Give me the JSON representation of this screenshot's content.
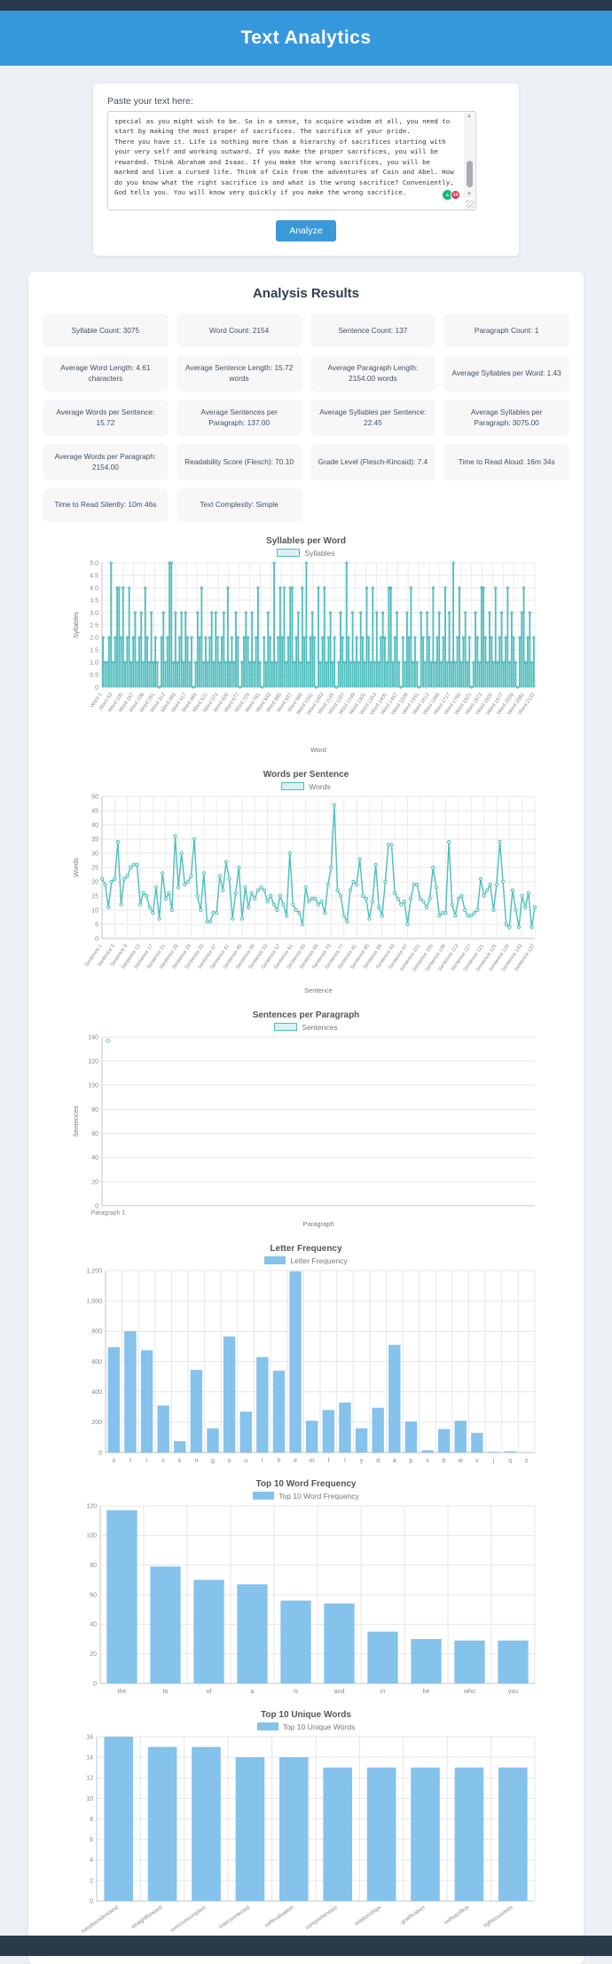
{
  "header": {
    "title": "Text Analytics"
  },
  "input_section": {
    "label": "Paste your text here:",
    "textarea_value": "special as you might wish to be. So in a sense, to acquire wisdom at all, you need to start by making the most proper of sacrifices. The sacrifice of your pride.\nThere you have it. Life is nothing more than a hierarchy of sacrifices starting with your very self and working outward. If you make the proper sacrifices, you will be rewarded. Think Abraham and Isaac. If you make the wrong sacrifices, you will be marked and live a cursed life. Think of Cain from the adventures of Cain and Abel. How do you know what the right sacrifice is and what is the wrong sacrifice? Conveniently, God tells you. You will know very quickly if you make the wrong sacrifice.",
    "analyze_button": "Analyze",
    "checker_error_count": "24"
  },
  "results": {
    "title": "Analysis Results",
    "stats": [
      "Syllable Count: 3075",
      "Word Count: 2154",
      "Sentence Count: 137",
      "Paragraph Count: 1",
      "Average Word Length: 4.61 characters",
      "Average Sentence Length: 15.72 words",
      "Average Paragraph Length: 2154.00 words",
      "Average Syllables per Word: 1.43",
      "Average Words per Sentence: 15.72",
      "Average Sentences per Paragraph: 137.00",
      "Average Syllables per Sentence: 22.45",
      "Average Syllables per Paragraph: 3075.00",
      "Average Words per Paragraph: 2154.00",
      "Readability Score (Flesch): 70.10",
      "Grade Level (Flesch-Kincaid): 7.4",
      "Time to Read Aloud: 16m 34s",
      "Time to Read Silently: 10m 46s",
      "Text Complexity: Simple"
    ]
  },
  "colors": {
    "accent_blue": "#3598dc",
    "teal_series": "#4dbdbd",
    "blue_series": "#85c2ec",
    "dark_bar": "#2a3a4a"
  },
  "chart_data": [
    {
      "id": "syllables-per-word",
      "type": "bar",
      "title": "Syllables per Word",
      "legend": "Syllables",
      "color": "#4dbdbd",
      "ylabel": "Syllables",
      "xlabel": "Word",
      "ylim": [
        0,
        5
      ],
      "ytick_values": [
        0,
        0.5,
        1,
        1.5,
        2,
        2.5,
        3,
        3.5,
        4,
        4.5,
        5
      ],
      "ytick_labels": [
        "0",
        "0.5",
        "1.0",
        "1.5",
        "2.0",
        "2.5",
        "3.0",
        "3.5",
        "4.0",
        "4.5",
        "5.0"
      ],
      "x_tick_labels": [
        "Word 1",
        "Word 53",
        "Word 105",
        "Word 157",
        "Word 209",
        "Word 261",
        "Word 313",
        "Word 365",
        "Word 417",
        "Word 469",
        "Word 521",
        "Word 573",
        "Word 625",
        "Word 677",
        "Word 729",
        "Word 781",
        "Word 833",
        "Word 885",
        "Word 937",
        "Word 989",
        "Word 1041",
        "Word 1093",
        "Word 1145",
        "Word 1197",
        "Word 1249",
        "Word 1301",
        "Word 1353",
        "Word 1405",
        "Word 1457",
        "Word 1509",
        "Word 1561",
        "Word 1613",
        "Word 1665",
        "Word 1717",
        "Word 1769",
        "Word 1821",
        "Word 1873",
        "Word 1925",
        "Word 1977",
        "Word 2029",
        "Word 2081",
        "Word 2133"
      ],
      "values": [
        2,
        1,
        1,
        2,
        5,
        1,
        2,
        4,
        4,
        2,
        4,
        1,
        2,
        4,
        1,
        2,
        3,
        1,
        2,
        3,
        1,
        4,
        2,
        1,
        3,
        1,
        2,
        1,
        0,
        2,
        3,
        1,
        2,
        5,
        5,
        1,
        3,
        1,
        2,
        3,
        1,
        3,
        2,
        1,
        2,
        0,
        1,
        3,
        2,
        4,
        1,
        2,
        1,
        2,
        3,
        1,
        3,
        2,
        1,
        2,
        3,
        1,
        4,
        1,
        2,
        1,
        3,
        2,
        0,
        1,
        2,
        3,
        2,
        1,
        3,
        1,
        2,
        4,
        1,
        0,
        2,
        1,
        3,
        2,
        1,
        5,
        1,
        2,
        4,
        2,
        4,
        1,
        2,
        4,
        4,
        1,
        2,
        3,
        1,
        4,
        2,
        5,
        1,
        2,
        3,
        2,
        0,
        4,
        1,
        2,
        4,
        1,
        2,
        3,
        1,
        2,
        0,
        1,
        3,
        2,
        1,
        5,
        2,
        1,
        3,
        1,
        2,
        1,
        3,
        2,
        1,
        4,
        2,
        1,
        4,
        1,
        3,
        1,
        2,
        3,
        2,
        1,
        4,
        4,
        1,
        2,
        3,
        1,
        0,
        2,
        1,
        3,
        2,
        4,
        1,
        2,
        1,
        0,
        3,
        2,
        1,
        3,
        2,
        1,
        4,
        1,
        2,
        3,
        1,
        2,
        4,
        1,
        3,
        1,
        5,
        1,
        2,
        4,
        1,
        2,
        3,
        1,
        2,
        0,
        1,
        3,
        2,
        1,
        4,
        4,
        2,
        1,
        3,
        2,
        1,
        4,
        1,
        2,
        3,
        1,
        2,
        4,
        1,
        3,
        2,
        1,
        0,
        2,
        3,
        4,
        1,
        2,
        3,
        1,
        2
      ]
    },
    {
      "id": "words-per-sentence",
      "type": "line",
      "title": "Words per Sentence",
      "legend": "Words",
      "color": "#4dbdbd",
      "ylabel": "Words",
      "xlabel": "Sentence",
      "ylim": [
        0,
        50
      ],
      "ytick_values": [
        0,
        5,
        10,
        15,
        20,
        25,
        30,
        35,
        40,
        45,
        50
      ],
      "ytick_labels": [
        "0",
        "5",
        "10",
        "15",
        "20",
        "25",
        "30",
        "35",
        "40",
        "45",
        "50"
      ],
      "x_tick_labels": [
        "Sentence 1",
        "Sentence 5",
        "Sentence 9",
        "Sentence 13",
        "Sentence 17",
        "Sentence 21",
        "Sentence 25",
        "Sentence 29",
        "Sentence 33",
        "Sentence 37",
        "Sentence 41",
        "Sentence 45",
        "Sentence 49",
        "Sentence 53",
        "Sentence 57",
        "Sentence 61",
        "Sentence 65",
        "Sentence 69",
        "Sentence 73",
        "Sentence 77",
        "Sentence 81",
        "Sentence 85",
        "Sentence 89",
        "Sentence 93",
        "Sentence 97",
        "Sentence 101",
        "Sentence 105",
        "Sentence 109",
        "Sentence 113",
        "Sentence 117",
        "Sentence 121",
        "Sentence 125",
        "Sentence 129",
        "Sentence 133",
        "Sentence 137"
      ],
      "values": [
        21,
        19,
        11,
        20,
        21,
        34,
        12,
        21,
        22,
        25,
        26,
        26,
        12,
        16,
        15,
        11,
        9,
        18,
        7,
        23,
        14,
        16,
        10,
        36,
        18,
        30,
        19,
        20,
        22,
        35,
        15,
        10,
        23,
        6,
        6,
        9,
        9,
        22,
        17,
        27,
        21,
        7,
        16,
        25,
        7,
        18,
        11,
        16,
        14,
        17,
        18,
        17,
        13,
        15,
        12,
        10,
        15,
        12,
        8,
        30,
        12,
        10,
        9,
        5,
        18,
        13,
        14,
        14,
        12,
        13,
        9,
        19,
        25,
        47,
        17,
        15,
        8,
        6,
        17,
        20,
        19,
        28,
        15,
        14,
        7,
        13,
        26,
        11,
        8,
        20,
        33,
        33,
        16,
        14,
        12,
        13,
        5,
        14,
        19,
        19,
        14,
        13,
        11,
        14,
        25,
        18,
        8,
        9,
        9,
        34,
        12,
        8,
        14,
        15,
        10,
        8,
        8,
        9,
        10,
        21,
        15,
        17,
        19,
        10,
        19,
        34,
        20,
        5,
        4,
        17,
        10,
        4,
        15,
        11,
        16,
        4,
        11
      ]
    },
    {
      "id": "sentences-per-paragraph",
      "type": "line",
      "title": "Sentences per Paragraph",
      "legend": "Sentences",
      "color": "#4dbdbd",
      "ylabel": "Sentences",
      "xlabel": "Paragraph",
      "ylim": [
        0,
        140
      ],
      "ytick_values": [
        0,
        20,
        40,
        60,
        80,
        100,
        120,
        140
      ],
      "ytick_labels": [
        "0",
        "20",
        "40",
        "60",
        "80",
        "100",
        "120",
        "140"
      ],
      "categories": [
        "Paragraph 1"
      ],
      "values": [
        137
      ]
    },
    {
      "id": "letter-frequency",
      "type": "bar",
      "title": "Letter Frequency",
      "legend": "Letter Frequency",
      "color": "#85c2ec",
      "ylim": [
        0,
        1200
      ],
      "ytick_values": [
        0,
        200,
        400,
        600,
        800,
        1000,
        1200
      ],
      "ytick_labels": [
        "0",
        "200",
        "400",
        "600",
        "800",
        "1,000",
        "1,200"
      ],
      "categories": [
        "s",
        "t",
        "i",
        "c",
        "k",
        "n",
        "g",
        "o",
        "u",
        "r",
        "h",
        "e",
        "m",
        "f",
        "l",
        "y",
        "d",
        "a",
        "p",
        "x",
        "b",
        "w",
        "v",
        "j",
        "q",
        "z"
      ],
      "values": [
        695,
        800,
        675,
        310,
        75,
        545,
        160,
        765,
        270,
        630,
        540,
        1195,
        210,
        280,
        330,
        160,
        295,
        710,
        205,
        15,
        155,
        210,
        130,
        5,
        8,
        2
      ]
    },
    {
      "id": "top-10-word-frequency",
      "type": "bar",
      "title": "Top 10 Word Frequency",
      "legend": "Top 10 Word Frequency",
      "color": "#85c2ec",
      "ylim": [
        0,
        120
      ],
      "ytick_values": [
        0,
        20,
        40,
        60,
        80,
        100,
        120
      ],
      "ytick_labels": [
        "0",
        "20",
        "40",
        "60",
        "80",
        "100",
        "120"
      ],
      "categories": [
        "the",
        "to",
        "of",
        "a",
        "is",
        "and",
        "in",
        "he",
        "who",
        "you"
      ],
      "values": [
        117,
        79,
        70,
        67,
        56,
        54,
        35,
        30,
        29,
        29
      ]
    },
    {
      "id": "top-10-unique-words",
      "type": "bar",
      "title": "Top 10 Unique Words",
      "legend": "Top 10 Unique Words",
      "color": "#85c2ec",
      "ylim": [
        0,
        16
      ],
      "ytick_values": [
        0,
        2,
        4,
        6,
        8,
        10,
        12,
        14,
        16
      ],
      "ytick_labels": [
        "0",
        "2",
        "4",
        "6",
        "8",
        "10",
        "12",
        "14",
        "16"
      ],
      "categories": [
        "easytounderstand",
        "straightforward",
        "overconsumption",
        "interconnected",
        "selfevaluation",
        "comprehension",
        "relationships",
        "gratification",
        "selfsacrifice",
        "righteousness"
      ],
      "values": [
        16,
        15,
        15,
        14,
        14,
        13,
        13,
        13,
        13,
        13
      ]
    }
  ]
}
